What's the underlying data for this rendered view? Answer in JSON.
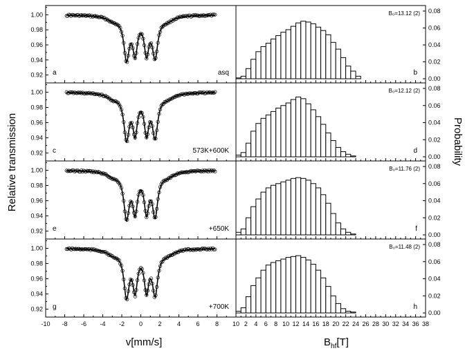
{
  "figure": {
    "ylabel_left": "Relative transmission",
    "ylabel_right": "Probability",
    "xlabel_left": "v[mm/s]",
    "xlabel_right_main": "B",
    "xlabel_right_sub": "hf",
    "xlabel_right_unit": "[T]"
  },
  "chart_data": [
    {
      "type": "line",
      "panels": [
        {
          "letter": "a",
          "label": "asq"
        },
        {
          "letter": "c",
          "label": "573K+600K"
        },
        {
          "letter": "e",
          "label": "+650K"
        },
        {
          "letter": "g",
          "label": "+700K"
        }
      ],
      "xlim": [
        -10,
        10
      ],
      "xticks": [
        "-10",
        "-8",
        "-6",
        "-4",
        "-2",
        "0",
        "2",
        "4",
        "6",
        "8",
        "10"
      ],
      "ylim": [
        0.915,
        1.005
      ],
      "yticks": [
        "0.92",
        "0.94",
        "0.96",
        "0.98",
        "1.00"
      ],
      "series_shape": {
        "baseline": 1.0,
        "x_range": [
          -7.8,
          7.8
        ],
        "dips": [
          {
            "center": -2.9,
            "width": 0.8,
            "depth": 0.006
          },
          {
            "center": -1.5,
            "width": 0.35,
            "depth": 0.055
          },
          {
            "center": -0.6,
            "width": 0.3,
            "depth": 0.046
          },
          {
            "center": 0.6,
            "width": 0.3,
            "depth": 0.046
          },
          {
            "center": 1.5,
            "width": 0.35,
            "depth": 0.052
          },
          {
            "center": 2.8,
            "width": 0.8,
            "depth": 0.006
          }
        ]
      },
      "depth_scale": [
        1.0,
        1.04,
        1.06,
        1.07
      ]
    },
    {
      "type": "bar",
      "xlim": [
        0,
        38
      ],
      "xticks": [
        "2",
        "4",
        "6",
        "8",
        "10",
        "12",
        "14",
        "16",
        "18",
        "20",
        "22",
        "24",
        "26",
        "28",
        "30",
        "32",
        "34",
        "36",
        "38"
      ],
      "ylim": [
        0,
        0.08
      ],
      "yticks": [
        "0.00",
        "0.02",
        "0.04",
        "0.06",
        "0.08"
      ],
      "bin_start": 0,
      "bin_width": 1,
      "panels": [
        {
          "letter": "b",
          "annotation": "B₀=13.12 (2)",
          "values": [
            0.001,
            0.003,
            0.012,
            0.023,
            0.032,
            0.038,
            0.042,
            0.047,
            0.051,
            0.055,
            0.058,
            0.062,
            0.066,
            0.068,
            0.067,
            0.065,
            0.061,
            0.057,
            0.052,
            0.043,
            0.035,
            0.025,
            0.015,
            0.009,
            0.003
          ]
        },
        {
          "letter": "d",
          "annotation": "B₀=12.12 (2)",
          "values": [
            0.002,
            0.005,
            0.016,
            0.03,
            0.039,
            0.045,
            0.049,
            0.053,
            0.057,
            0.06,
            0.063,
            0.067,
            0.07,
            0.068,
            0.062,
            0.055,
            0.047,
            0.038,
            0.028,
            0.019,
            0.011,
            0.006,
            0.003,
            0.001
          ]
        },
        {
          "letter": "f",
          "annotation": "B₀=11.76 (2)",
          "values": [
            0.003,
            0.007,
            0.02,
            0.033,
            0.042,
            0.05,
            0.055,
            0.058,
            0.06,
            0.062,
            0.064,
            0.066,
            0.067,
            0.066,
            0.064,
            0.06,
            0.055,
            0.047,
            0.037,
            0.025,
            0.014,
            0.007,
            0.003,
            0.001
          ]
        },
        {
          "letter": "h",
          "annotation": "B₀=11.48 (2)",
          "values": [
            0.002,
            0.006,
            0.019,
            0.032,
            0.041,
            0.05,
            0.056,
            0.059,
            0.061,
            0.063,
            0.065,
            0.066,
            0.067,
            0.065,
            0.062,
            0.057,
            0.05,
            0.041,
            0.031,
            0.02,
            0.011,
            0.005,
            0.002,
            0.001
          ]
        }
      ]
    }
  ]
}
